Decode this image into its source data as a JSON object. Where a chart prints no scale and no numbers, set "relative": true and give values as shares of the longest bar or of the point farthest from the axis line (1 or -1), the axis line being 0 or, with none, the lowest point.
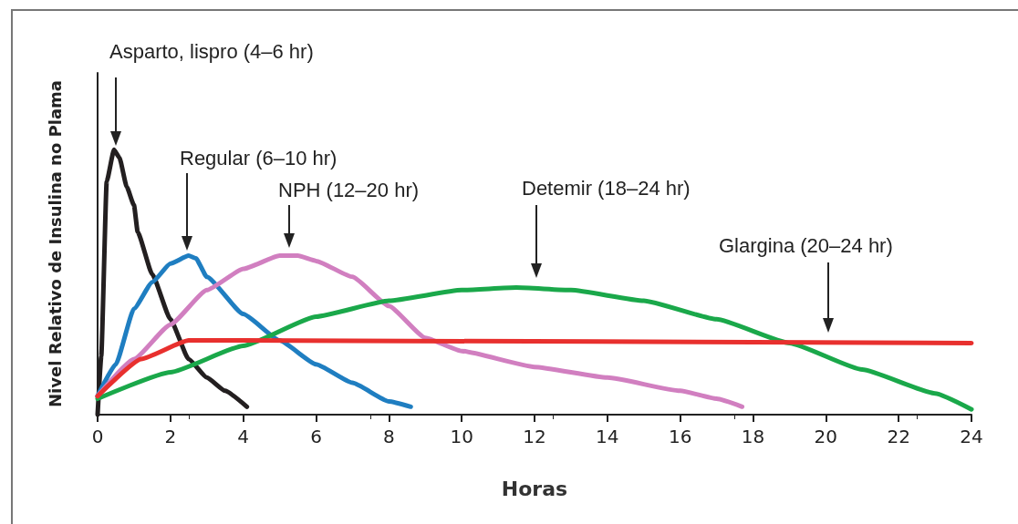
{
  "chart_data": {
    "type": "line",
    "xlabel": "Horas",
    "ylabel": "Nivel Relativo de Insulina no Plama",
    "relative": true,
    "grid": false,
    "marker": "none",
    "line_style": "solid",
    "xlim": [
      0,
      24
    ],
    "xticks": [
      0,
      2,
      4,
      6,
      8,
      10,
      12,
      14,
      16,
      18,
      20,
      22,
      24
    ],
    "series": [
      {
        "color": "#231f20",
        "x": [
          0,
          0.1,
          0.25,
          0.45,
          0.6,
          0.8,
          1.0,
          1.1,
          1.5,
          2,
          2.5,
          3,
          3.5,
          4.1
        ],
        "values": [
          0,
          0.22,
          0.88,
          1,
          0.97,
          0.86,
          0.79,
          0.69,
          0.53,
          0.36,
          0.21,
          0.14,
          0.09,
          0.03
        ]
      },
      {
        "color": "#1f7ec1",
        "x": [
          0,
          0.5,
          1,
          1.5,
          2,
          2.5,
          2.7,
          3,
          4,
          5,
          6,
          7,
          8,
          8.6
        ],
        "values": [
          0.07,
          0.19,
          0.4,
          0.5,
          0.57,
          0.6,
          0.59,
          0.52,
          0.38,
          0.28,
          0.19,
          0.12,
          0.05,
          0.03
        ]
      },
      {
        "color": "#d17fc0",
        "x": [
          0,
          1,
          2,
          3,
          4,
          5,
          5.5,
          6,
          7,
          8,
          9,
          10,
          12,
          14,
          16,
          17,
          17.7
        ],
        "values": [
          0.07,
          0.21,
          0.34,
          0.47,
          0.55,
          0.6,
          0.6,
          0.58,
          0.52,
          0.41,
          0.29,
          0.24,
          0.18,
          0.14,
          0.09,
          0.06,
          0.03
        ]
      },
      {
        "color": "#1aa84a",
        "x": [
          0,
          2,
          4,
          6,
          8,
          10,
          11.5,
          13,
          15,
          17,
          19,
          21,
          23,
          24
        ],
        "values": [
          0.06,
          0.16,
          0.26,
          0.37,
          0.43,
          0.47,
          0.48,
          0.47,
          0.43,
          0.36,
          0.27,
          0.17,
          0.08,
          0.02
        ]
      },
      {
        "color": "#e8302e",
        "x": [
          0,
          1.2,
          2.5,
          4,
          24
        ],
        "values": [
          0.07,
          0.21,
          0.28,
          0.28,
          0.27
        ]
      }
    ],
    "annotations": [
      "Asparto, lispro (4–6 hr)",
      "Regular (6–10 hr)",
      "NPH (12–20 hr)",
      "Detemir (18–24 hr)",
      "Glargina (20–24 hr)"
    ]
  }
}
